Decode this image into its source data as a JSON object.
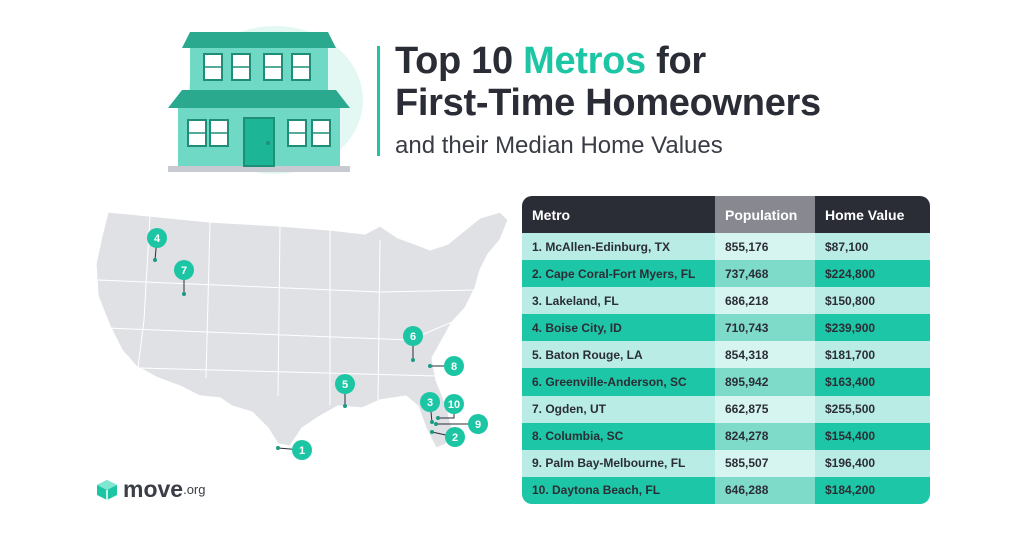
{
  "header": {
    "title_part1": "Top 10 ",
    "title_accent": "Metros",
    "title_part2": " for",
    "title_line2": "First-Time Homeowners",
    "subtitle": "and their Median Home Values"
  },
  "colors": {
    "accent": "#1cc6a4",
    "dark": "#2b2d36",
    "map": "#dfe1e5"
  },
  "chart_data": {
    "type": "table",
    "columns": [
      "Metro",
      "Population",
      "Home Value"
    ],
    "rows": [
      [
        "1. McAllen-Edinburg, TX",
        "855,176",
        "$87,100"
      ],
      [
        "2. Cape Coral-Fort Myers, FL",
        "737,468",
        "$224,800"
      ],
      [
        "3. Lakeland, FL",
        "686,218",
        "$150,800"
      ],
      [
        "4. Boise City, ID",
        "710,743",
        "$239,900"
      ],
      [
        "5. Baton Rouge, LA",
        "854,318",
        "$181,700"
      ],
      [
        "6. Greenville-Anderson, SC",
        "895,942",
        "$163,400"
      ],
      [
        "7. Ogden, UT",
        "662,875",
        "$255,500"
      ],
      [
        "8. Columbia, SC",
        "824,278",
        "$154,400"
      ],
      [
        "9. Palm Bay-Melbourne, FL",
        "585,507",
        "$196,400"
      ],
      [
        "10. Daytona Beach, FL",
        "646,288",
        "$184,200"
      ]
    ],
    "map_pins": [
      "1",
      "2",
      "3",
      "4",
      "5",
      "6",
      "7",
      "8",
      "9",
      "10"
    ]
  },
  "logo": {
    "word": "move",
    "suffix": ".org"
  }
}
